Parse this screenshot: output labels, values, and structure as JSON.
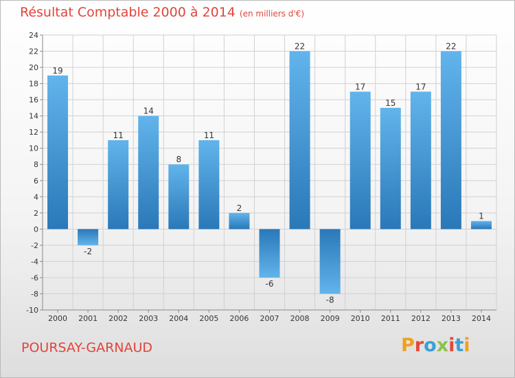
{
  "header": {
    "title": "Résultat Comptable 2000 à 2014",
    "unit": "(en milliers d'€)"
  },
  "footer": {
    "city": "POURSAY-GARNAUD",
    "brand": "Proxiti",
    "brand_colors": [
      "#f0a020",
      "#e04a3a",
      "#3aa0d8",
      "#8bc34a",
      "#e04a3a",
      "#3aa0d8",
      "#f0a020"
    ]
  },
  "colors": {
    "title": "#e0443a",
    "bar_light": "#5aaee8",
    "bar_dark": "#2a78b8",
    "grid": "#d0d0d0",
    "axis": "#888888"
  },
  "chart_data": {
    "type": "bar",
    "title": "Résultat Comptable 2000 à 2014",
    "xlabel": "",
    "ylabel": "en milliers d'€",
    "ylim": [
      -10,
      24
    ],
    "ytick_step": 2,
    "grid": true,
    "categories": [
      "2000",
      "2001",
      "2002",
      "2003",
      "2004",
      "2005",
      "2006",
      "2007",
      "2008",
      "2009",
      "2010",
      "2011",
      "2012",
      "2013",
      "2014"
    ],
    "values": [
      19,
      -2,
      11,
      14,
      8,
      11,
      2,
      -6,
      22,
      -8,
      17,
      15,
      17,
      22,
      1
    ]
  }
}
